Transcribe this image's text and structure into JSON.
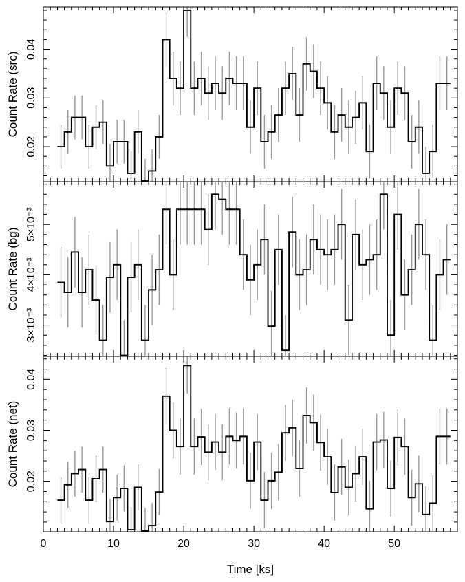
{
  "chart_data": [
    {
      "type": "line",
      "style": "step-histogram-with-error-bars",
      "ylabel": "Count Rate (src)",
      "xlim": [
        0,
        59
      ],
      "ylim": [
        0.0128,
        0.0487
      ],
      "yticks": [
        0.02,
        0.03,
        0.04
      ],
      "ytick_labels": [
        "0.02",
        "0.03",
        "0.04"
      ],
      "x_centers": [
        2.5,
        3.5,
        4.5,
        5.5,
        6.5,
        7.5,
        8.5,
        9.5,
        10.5,
        11.5,
        12.5,
        13.5,
        14.5,
        15.5,
        16.5,
        17.5,
        18.5,
        19.5,
        20.5,
        21.5,
        22.5,
        23.5,
        24.5,
        25.5,
        26.5,
        27.5,
        28.5,
        29.5,
        30.5,
        31.5,
        32.5,
        33.5,
        34.5,
        35.5,
        36.5,
        37.5,
        38.5,
        39.5,
        40.5,
        41.5,
        42.5,
        43.5,
        44.5,
        45.5,
        46.5,
        47.5,
        48.5,
        49.5,
        50.5,
        51.5,
        52.5,
        53.5,
        54.5,
        55.5,
        56.5,
        57.5
      ],
      "values": [
        0.02,
        0.023,
        0.026,
        0.026,
        0.02,
        0.024,
        0.025,
        0.016,
        0.021,
        0.021,
        0.0145,
        0.023,
        0.013,
        0.015,
        0.022,
        0.042,
        0.034,
        0.032,
        0.048,
        0.032,
        0.034,
        0.031,
        0.033,
        0.031,
        0.034,
        0.033,
        0.033,
        0.024,
        0.032,
        0.021,
        0.023,
        0.0265,
        0.032,
        0.035,
        0.0265,
        0.037,
        0.0355,
        0.032,
        0.029,
        0.023,
        0.0265,
        0.024,
        0.026,
        0.029,
        0.019,
        0.033,
        0.031,
        0.024,
        0.032,
        0.031,
        0.021,
        0.024,
        0.0145,
        0.019,
        0.033,
        0.033
      ],
      "errors": [
        0.0045,
        0.0045,
        0.0045,
        0.0045,
        0.0045,
        0.0045,
        0.0045,
        0.0045,
        0.0045,
        0.0045,
        0.0045,
        0.0045,
        0.0045,
        0.0045,
        0.0045,
        0.0055,
        0.0055,
        0.0055,
        0.0055,
        0.0055,
        0.0055,
        0.0055,
        0.0055,
        0.0055,
        0.0055,
        0.0055,
        0.0055,
        0.0055,
        0.0055,
        0.0055,
        0.0055,
        0.0055,
        0.0055,
        0.0055,
        0.0055,
        0.0055,
        0.0055,
        0.0055,
        0.0055,
        0.0055,
        0.0055,
        0.0055,
        0.0055,
        0.0055,
        0.0055,
        0.0055,
        0.0055,
        0.0055,
        0.0055,
        0.0055,
        0.0055,
        0.0055,
        0.0055,
        0.0055,
        0.0055,
        0.0055
      ]
    },
    {
      "type": "line",
      "style": "step-histogram-with-error-bars",
      "ylabel": "Count Rate (bg)",
      "xlim": [
        0,
        59
      ],
      "ylim": [
        0.00238,
        0.00585
      ],
      "yticks": [
        0.003,
        0.004,
        0.005
      ],
      "ytick_labels": [
        "3×10⁻³",
        "4×10⁻³",
        "5×10⁻³"
      ],
      "x_centers": [
        2.5,
        3.5,
        4.5,
        5.5,
        6.5,
        7.5,
        8.5,
        9.5,
        10.5,
        11.5,
        12.5,
        13.5,
        14.5,
        15.5,
        16.5,
        17.5,
        18.5,
        19.5,
        20.5,
        21.5,
        22.5,
        23.5,
        24.5,
        25.5,
        26.5,
        27.5,
        28.5,
        29.5,
        30.5,
        31.5,
        32.5,
        33.5,
        34.5,
        35.5,
        36.5,
        37.5,
        38.5,
        39.5,
        40.5,
        41.5,
        42.5,
        43.5,
        44.5,
        45.5,
        46.5,
        47.5,
        48.5,
        49.5,
        50.5,
        51.5,
        52.5,
        53.5,
        54.5,
        55.5,
        56.5,
        57.5
      ],
      "values": [
        0.00385,
        0.00365,
        0.00445,
        0.00365,
        0.0041,
        0.0035,
        0.0027,
        0.00395,
        0.0042,
        0.0024,
        0.00395,
        0.0042,
        0.0027,
        0.0037,
        0.0041,
        0.0053,
        0.004,
        0.0053,
        0.0053,
        0.0053,
        0.0053,
        0.0049,
        0.0056,
        0.0055,
        0.0053,
        0.0053,
        0.0044,
        0.0039,
        0.0042,
        0.0047,
        0.00298,
        0.0045,
        0.0025,
        0.00485,
        0.004,
        0.0041,
        0.0047,
        0.0045,
        0.0044,
        0.0045,
        0.005,
        0.0031,
        0.0048,
        0.0042,
        0.0043,
        0.0044,
        0.0056,
        0.0028,
        0.0052,
        0.0036,
        0.0041,
        0.005,
        0.0044,
        0.0027,
        0.004,
        0.0043
      ],
      "errors": [
        0.0007,
        0.0007,
        0.0007,
        0.0007,
        0.0007,
        0.0007,
        0.0007,
        0.0007,
        0.0007,
        0.0007,
        0.0007,
        0.0007,
        0.0007,
        0.0007,
        0.0007,
        0.0007,
        0.0007,
        0.0007,
        0.0007,
        0.0007,
        0.0007,
        0.0007,
        0.0007,
        0.0007,
        0.0007,
        0.0007,
        0.0007,
        0.0007,
        0.0007,
        0.0007,
        0.0007,
        0.0007,
        0.0007,
        0.0007,
        0.0007,
        0.0007,
        0.0007,
        0.0007,
        0.0007,
        0.0007,
        0.0007,
        0.0007,
        0.0007,
        0.0007,
        0.0007,
        0.0007,
        0.0007,
        0.0007,
        0.0007,
        0.0007,
        0.0007,
        0.0007,
        0.0007,
        0.0007,
        0.0007,
        0.0007
      ]
    },
    {
      "type": "line",
      "style": "step-histogram-with-error-bars",
      "ylabel": "Count Rate (net)",
      "xlabel": "Time [ks]",
      "xlim": [
        0,
        59
      ],
      "ylim": [
        0.0101,
        0.0445
      ],
      "xticks": [
        0,
        10,
        20,
        30,
        40,
        50
      ],
      "xtick_labels": [
        "0",
        "10",
        "20",
        "30",
        "40",
        "50"
      ],
      "yticks": [
        0.02,
        0.03,
        0.04
      ],
      "ytick_labels": [
        "0.02",
        "0.03",
        "0.04"
      ],
      "x_centers": [
        2.5,
        3.5,
        4.5,
        5.5,
        6.5,
        7.5,
        8.5,
        9.5,
        10.5,
        11.5,
        12.5,
        13.5,
        14.5,
        15.5,
        16.5,
        17.5,
        18.5,
        19.5,
        20.5,
        21.5,
        22.5,
        23.5,
        24.5,
        25.5,
        26.5,
        27.5,
        28.5,
        29.5,
        30.5,
        31.5,
        32.5,
        33.5,
        34.5,
        35.5,
        36.5,
        37.5,
        38.5,
        39.5,
        40.5,
        41.5,
        42.5,
        43.5,
        44.5,
        45.5,
        46.5,
        47.5,
        48.5,
        49.5,
        50.5,
        51.5,
        52.5,
        53.5,
        54.5,
        55.5,
        56.5,
        57.5
      ],
      "values": [
        0.0163,
        0.0193,
        0.0215,
        0.0223,
        0.0163,
        0.0205,
        0.0223,
        0.0121,
        0.0168,
        0.0186,
        0.0105,
        0.0188,
        0.0103,
        0.0113,
        0.0179,
        0.0367,
        0.03,
        0.0268,
        0.0427,
        0.0268,
        0.0287,
        0.0257,
        0.0277,
        0.0257,
        0.0288,
        0.028,
        0.0288,
        0.0201,
        0.0277,
        0.0163,
        0.0201,
        0.0218,
        0.0295,
        0.0305,
        0.0225,
        0.0329,
        0.0315,
        0.0276,
        0.0248,
        0.0178,
        0.0228,
        0.0188,
        0.0215,
        0.0248,
        0.0146,
        0.0277,
        0.0281,
        0.0186,
        0.0286,
        0.0268,
        0.0168,
        0.0195,
        0.0135,
        0.0157,
        0.0288,
        0.0288
      ],
      "errors": [
        0.0045,
        0.0045,
        0.0045,
        0.0045,
        0.0045,
        0.0045,
        0.0045,
        0.0045,
        0.0045,
        0.0045,
        0.0045,
        0.0045,
        0.0045,
        0.0045,
        0.0045,
        0.0055,
        0.0055,
        0.0055,
        0.0055,
        0.0055,
        0.0055,
        0.0055,
        0.0055,
        0.0055,
        0.0055,
        0.0055,
        0.0055,
        0.0055,
        0.0055,
        0.0055,
        0.0055,
        0.0055,
        0.0055,
        0.0055,
        0.0055,
        0.0055,
        0.0055,
        0.0055,
        0.0055,
        0.0055,
        0.0055,
        0.0055,
        0.0055,
        0.0055,
        0.0055,
        0.0055,
        0.0055,
        0.0055,
        0.0055,
        0.0055,
        0.0055,
        0.0055,
        0.0055,
        0.0055,
        0.0055,
        0.0055
      ]
    }
  ]
}
